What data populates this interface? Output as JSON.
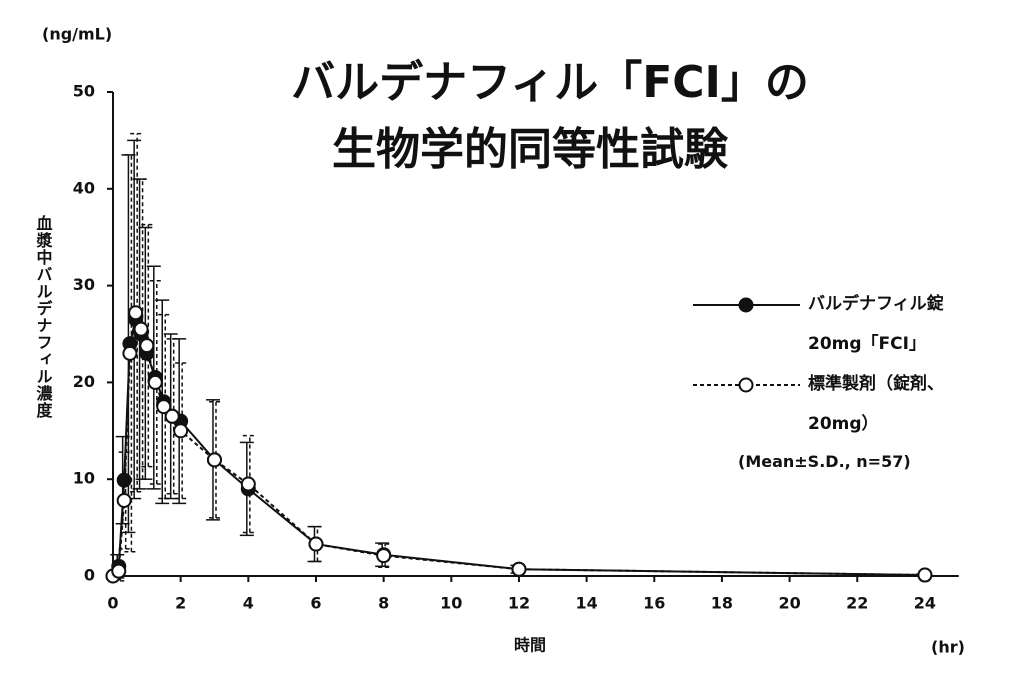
{
  "chart_data": {
    "type": "line",
    "title": [
      "バルデナフィル「FCI」の",
      "生物学的同等性試験"
    ],
    "y_label": "血漿中バルデナフィル濃度",
    "y_unit": "(ng/mL)",
    "x_label": "時間",
    "x_unit": "(hr)",
    "annotation": "(Mean±S.D., n=57)",
    "x": [
      0,
      0.17,
      0.33,
      0.5,
      0.67,
      0.83,
      1,
      1.25,
      1.5,
      1.75,
      2,
      3,
      4,
      6,
      8,
      12,
      24
    ],
    "series": [
      {
        "name": "バルデナフィル錠 20mg「FCI」",
        "color": "#111111",
        "marker_fill": "#111111",
        "dash": "solid",
        "values": [
          0,
          1.0,
          9.9,
          24.0,
          26.5,
          25.0,
          23.0,
          20.5,
          18.0,
          16.5,
          16.0,
          12.0,
          9.0,
          3.3,
          2.2,
          0.7,
          0.1
        ],
        "errors": [
          0,
          1.2,
          4.5,
          19.5,
          18.5,
          16.0,
          13.0,
          11.5,
          10.5,
          8.5,
          8.5,
          6.2,
          4.8,
          1.8,
          1.2,
          0.4,
          0.1
        ]
      },
      {
        "name": "標準製剤（錠剤、20mg）",
        "color": "#111111",
        "marker_fill": "#ffffff",
        "dash": "dashed",
        "values": [
          0,
          0.5,
          7.8,
          23.0,
          27.2,
          25.5,
          23.8,
          20.0,
          17.5,
          16.5,
          15.0,
          12.0,
          9.5,
          3.3,
          2.1,
          0.7,
          0.1
        ],
        "errors": [
          0,
          1.0,
          5.0,
          20.5,
          18.5,
          15.5,
          12.5,
          10.5,
          9.5,
          8.0,
          7.0,
          6.0,
          5.0,
          1.8,
          1.2,
          0.4,
          0.1
        ]
      }
    ],
    "xlim": [
      0,
      25
    ],
    "xticks": [
      0,
      2,
      4,
      6,
      8,
      10,
      12,
      14,
      16,
      18,
      20,
      22,
      24
    ],
    "ylim": [
      0,
      50
    ],
    "yticks": [
      0,
      10,
      20,
      30,
      40,
      50
    ]
  }
}
